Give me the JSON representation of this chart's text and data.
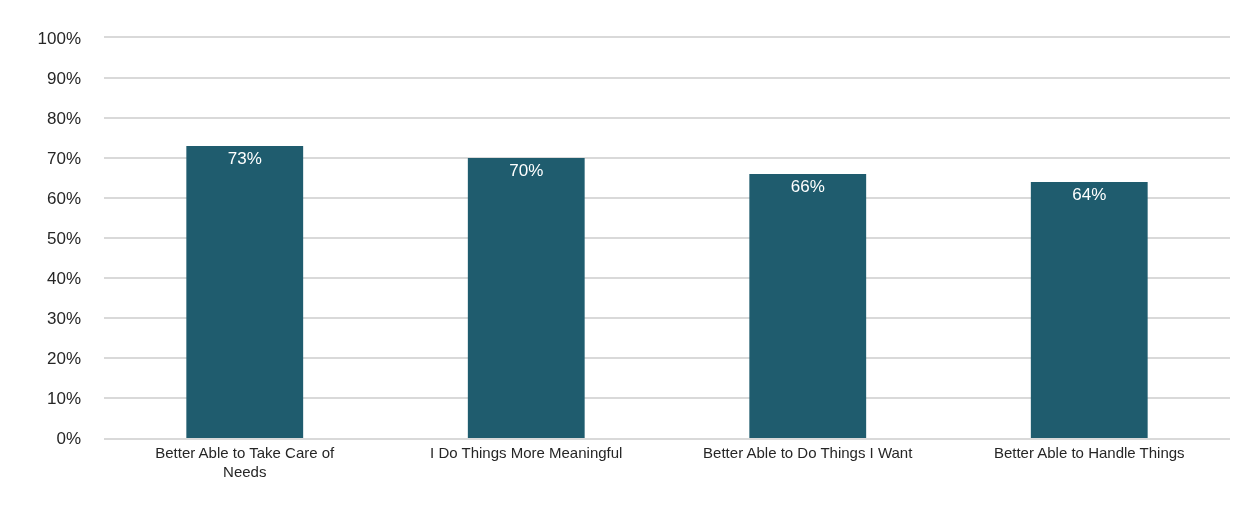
{
  "chart_data": {
    "type": "bar",
    "categories": [
      "Better Able to Take Care of Needs",
      "I Do Things More Meaningful",
      "Better Able to Do Things I Want",
      "Better Able to Handle Things"
    ],
    "values": [
      73,
      70,
      66,
      64
    ],
    "color": "#1f5c6e",
    "value_labels": [
      "73%",
      "70%",
      "66%",
      "64%"
    ],
    "ylim": [
      0,
      100
    ],
    "yticks": [
      {
        "value": 0,
        "label": "0%"
      },
      {
        "value": 10,
        "label": "10%"
      },
      {
        "value": 20,
        "label": "20%"
      },
      {
        "value": 30,
        "label": "30%"
      },
      {
        "value": 40,
        "label": "40%"
      },
      {
        "value": 50,
        "label": "50%"
      },
      {
        "value": 60,
        "label": "60%"
      },
      {
        "value": 70,
        "label": "70%"
      },
      {
        "value": 80,
        "label": "80%"
      },
      {
        "value": 90,
        "label": "90%"
      },
      {
        "value": 100,
        "label": "100%"
      }
    ],
    "grid": "y"
  }
}
